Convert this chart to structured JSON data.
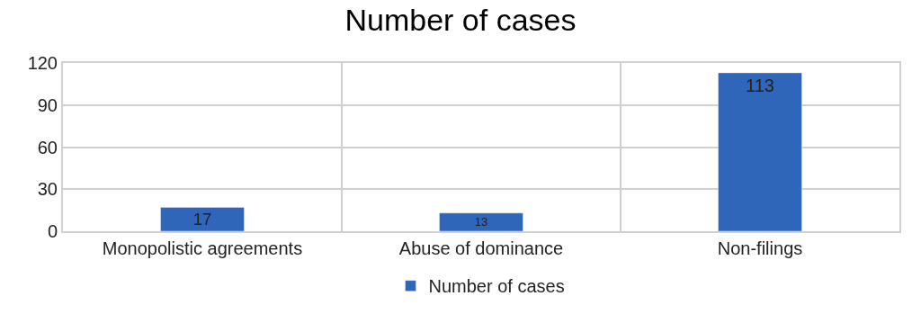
{
  "chart_data": {
    "type": "bar",
    "title": "Number of cases",
    "categories": [
      "Monopolistic agreements",
      "Abuse of dominance",
      "Non-filings"
    ],
    "series": [
      {
        "name": "Number of cases",
        "color": "#3066ba",
        "values": [
          17,
          13,
          113
        ]
      }
    ],
    "ylim": [
      0,
      120
    ],
    "yticks": [
      0,
      30,
      60,
      90,
      120
    ],
    "grid": true,
    "legend": "bottom",
    "data_labels": true
  }
}
